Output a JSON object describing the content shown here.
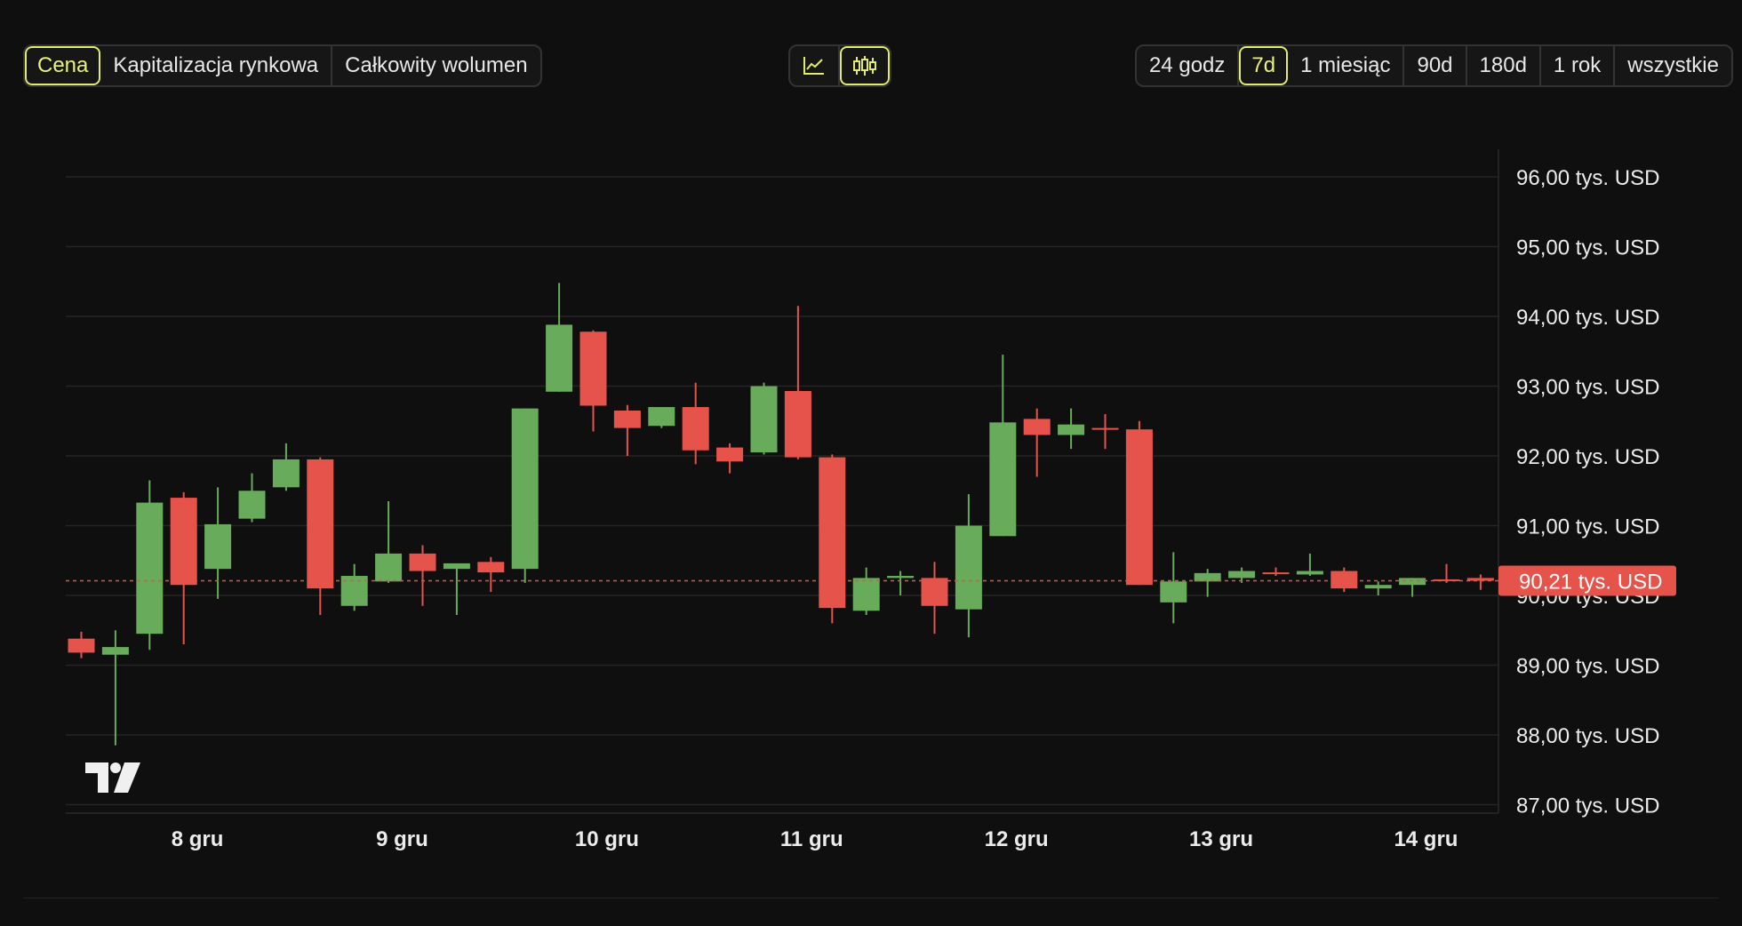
{
  "toolbar": {
    "metric_tabs": [
      {
        "label": "Cena",
        "active": true
      },
      {
        "label": "Kapitalizacja rynkowa",
        "active": false
      },
      {
        "label": "Całkowity wolumen",
        "active": false
      }
    ],
    "chart_type_buttons": [
      {
        "icon": "line-chart-icon",
        "active": false
      },
      {
        "icon": "candlestick-icon",
        "active": true
      }
    ],
    "range_tabs": [
      {
        "label": "24 godz",
        "active": false
      },
      {
        "label": "7d",
        "active": true
      },
      {
        "label": "1 miesiąc",
        "active": false
      },
      {
        "label": "90d",
        "active": false
      },
      {
        "label": "180d",
        "active": false
      },
      {
        "label": "1 rok",
        "active": false
      },
      {
        "label": "wszystkie",
        "active": false
      }
    ]
  },
  "colors": {
    "up": "#67ab5b",
    "down": "#e5534b",
    "accent": "#e2ec6c",
    "background": "#0f0f0f"
  },
  "chart_data": {
    "type": "candlestick",
    "y_ticks": [
      {
        "value": 96,
        "label": "96,00 tys. USD"
      },
      {
        "value": 95,
        "label": "95,00 tys. USD"
      },
      {
        "value": 94,
        "label": "94,00 tys. USD"
      },
      {
        "value": 93,
        "label": "93,00 tys. USD"
      },
      {
        "value": 92,
        "label": "92,00 tys. USD"
      },
      {
        "value": 91,
        "label": "91,00 tys. USD"
      },
      {
        "value": 90,
        "label": "90,00 tys. USD"
      },
      {
        "value": 89,
        "label": "89,00 tys. USD"
      },
      {
        "value": 88,
        "label": "88,00 tys. USD"
      },
      {
        "value": 87,
        "label": "87,00 tys. USD"
      }
    ],
    "x_ticks": [
      {
        "index": 3.4,
        "label": "8 gru"
      },
      {
        "index": 9.4,
        "label": "9 gru"
      },
      {
        "index": 15.4,
        "label": "10 gru"
      },
      {
        "index": 21.4,
        "label": "11 gru"
      },
      {
        "index": 27.4,
        "label": "12 gru"
      },
      {
        "index": 33.4,
        "label": "13 gru"
      },
      {
        "index": 39.4,
        "label": "14 gru"
      }
    ],
    "current_price": {
      "value": 90.21,
      "label": "90,21 tys. USD"
    },
    "ylim": [
      86.95,
      96.4
    ],
    "candles": [
      {
        "o": 89.38,
        "h": 89.48,
        "l": 89.1,
        "c": 89.18
      },
      {
        "o": 89.15,
        "h": 89.5,
        "l": 87.85,
        "c": 89.26
      },
      {
        "o": 89.45,
        "h": 91.65,
        "l": 89.22,
        "c": 91.33
      },
      {
        "o": 91.4,
        "h": 91.48,
        "l": 89.3,
        "c": 90.15
      },
      {
        "o": 90.38,
        "h": 91.55,
        "l": 89.95,
        "c": 91.02
      },
      {
        "o": 91.1,
        "h": 91.75,
        "l": 91.05,
        "c": 91.5
      },
      {
        "o": 91.55,
        "h": 92.18,
        "l": 91.5,
        "c": 91.95
      },
      {
        "o": 91.95,
        "h": 91.98,
        "l": 89.72,
        "c": 90.1
      },
      {
        "o": 89.85,
        "h": 90.45,
        "l": 89.78,
        "c": 90.28
      },
      {
        "o": 90.2,
        "h": 91.35,
        "l": 90.18,
        "c": 90.6
      },
      {
        "o": 90.6,
        "h": 90.72,
        "l": 89.85,
        "c": 90.35
      },
      {
        "o": 90.38,
        "h": 90.45,
        "l": 89.72,
        "c": 90.46
      },
      {
        "o": 90.48,
        "h": 90.55,
        "l": 90.05,
        "c": 90.33
      },
      {
        "o": 90.38,
        "h": 92.68,
        "l": 90.18,
        "c": 92.68
      },
      {
        "o": 92.92,
        "h": 94.48,
        "l": 92.92,
        "c": 93.88
      },
      {
        "o": 93.78,
        "h": 93.8,
        "l": 92.35,
        "c": 92.72
      },
      {
        "o": 92.65,
        "h": 92.73,
        "l": 92.0,
        "c": 92.4
      },
      {
        "o": 92.43,
        "h": 92.7,
        "l": 92.4,
        "c": 92.7
      },
      {
        "o": 92.7,
        "h": 93.05,
        "l": 91.88,
        "c": 92.08
      },
      {
        "o": 92.12,
        "h": 92.18,
        "l": 91.75,
        "c": 91.92
      },
      {
        "o": 92.05,
        "h": 93.05,
        "l": 92.02,
        "c": 93.0
      },
      {
        "o": 92.93,
        "h": 94.15,
        "l": 91.95,
        "c": 91.98
      },
      {
        "o": 91.98,
        "h": 92.02,
        "l": 89.6,
        "c": 89.82
      },
      {
        "o": 89.78,
        "h": 90.4,
        "l": 89.72,
        "c": 90.25
      },
      {
        "o": 90.25,
        "h": 90.35,
        "l": 90.0,
        "c": 90.28
      },
      {
        "o": 90.25,
        "h": 90.48,
        "l": 89.45,
        "c": 89.85
      },
      {
        "o": 89.8,
        "h": 91.45,
        "l": 89.4,
        "c": 91.0
      },
      {
        "o": 90.85,
        "h": 93.45,
        "l": 90.85,
        "c": 92.48
      },
      {
        "o": 92.53,
        "h": 92.68,
        "l": 91.7,
        "c": 92.3
      },
      {
        "o": 92.3,
        "h": 92.68,
        "l": 92.1,
        "c": 92.45
      },
      {
        "o": 92.4,
        "h": 92.6,
        "l": 92.1,
        "c": 92.38
      },
      {
        "o": 92.38,
        "h": 92.5,
        "l": 90.15,
        "c": 90.15
      },
      {
        "o": 89.9,
        "h": 90.62,
        "l": 89.6,
        "c": 90.2
      },
      {
        "o": 90.2,
        "h": 90.38,
        "l": 89.98,
        "c": 90.32
      },
      {
        "o": 90.25,
        "h": 90.4,
        "l": 90.18,
        "c": 90.35
      },
      {
        "o": 90.33,
        "h": 90.4,
        "l": 90.28,
        "c": 90.32
      },
      {
        "o": 90.3,
        "h": 90.6,
        "l": 90.28,
        "c": 90.35
      },
      {
        "o": 90.35,
        "h": 90.4,
        "l": 90.05,
        "c": 90.1
      },
      {
        "o": 90.1,
        "h": 90.2,
        "l": 90.0,
        "c": 90.15
      },
      {
        "o": 90.15,
        "h": 90.25,
        "l": 89.98,
        "c": 90.25
      },
      {
        "o": 90.23,
        "h": 90.45,
        "l": 90.18,
        "c": 90.21
      },
      {
        "o": 90.25,
        "h": 90.3,
        "l": 90.08,
        "c": 90.21
      }
    ]
  }
}
